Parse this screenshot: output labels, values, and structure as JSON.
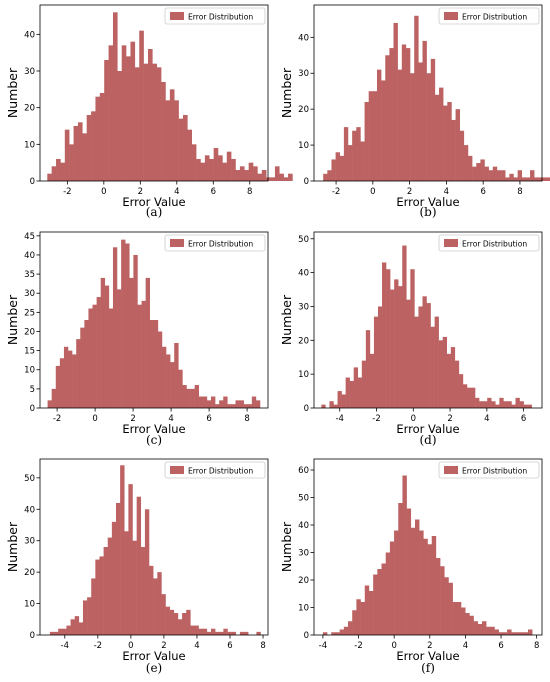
{
  "figure": {
    "bar_color": "#bc6262",
    "legend_swatch_color": "#bc6262"
  },
  "chart_data": [
    {
      "type": "bar",
      "caption": "(a)",
      "xlabel": "Error Value",
      "ylabel": "Number",
      "legend": "Error Distribution",
      "legend_position": "top-right",
      "xlim": [
        -3.5,
        9.0
      ],
      "ylim": [
        0,
        48
      ],
      "xticks": [
        "-2",
        "0",
        "2",
        "4",
        "6",
        "8"
      ],
      "xtick_values": [
        -2,
        0,
        2,
        4,
        6,
        8
      ],
      "yticks": [
        "0",
        "10",
        "20",
        "30",
        "40"
      ],
      "ytick_values": [
        0,
        10,
        20,
        30,
        40
      ],
      "bin_start": -3.1,
      "bin_width": 0.24,
      "values": [
        2,
        4,
        6,
        5,
        14,
        10,
        15,
        16,
        13,
        18,
        19,
        23,
        24,
        33,
        37,
        46,
        30,
        37,
        34,
        38,
        31,
        41,
        32,
        36,
        32,
        31,
        27,
        22,
        25,
        22,
        17,
        18,
        14,
        10,
        6,
        5,
        7,
        6,
        9,
        7,
        5,
        8,
        6,
        3,
        4,
        3,
        5,
        4,
        2,
        3,
        1,
        1,
        4,
        2,
        1,
        2
      ]
    },
    {
      "type": "bar",
      "caption": "(b)",
      "xlabel": "Error Value",
      "ylabel": "Number",
      "legend": "Error Distribution",
      "legend_position": "top-right",
      "xlim": [
        -3.2,
        9.2
      ],
      "ylim": [
        0,
        49
      ],
      "xticks": [
        "-2",
        "0",
        "2",
        "4",
        "6",
        "8"
      ],
      "xtick_values": [
        -2,
        0,
        2,
        4,
        6,
        8
      ],
      "yticks": [
        "0",
        "10",
        "20",
        "30",
        "40"
      ],
      "ytick_values": [
        0,
        10,
        20,
        30,
        40
      ],
      "bin_start": -2.7,
      "bin_width": 0.225,
      "values": [
        2,
        3,
        6,
        8,
        7,
        15,
        10,
        14,
        15,
        11,
        22,
        25,
        25,
        31,
        28,
        35,
        37,
        44,
        31,
        38,
        37,
        30,
        46,
        33,
        39,
        30,
        34,
        24,
        26,
        21,
        22,
        17,
        20,
        14,
        10,
        7,
        4,
        5,
        6,
        4,
        3,
        4,
        3,
        3,
        1,
        2,
        1,
        3,
        1,
        1,
        3,
        1,
        1,
        1,
        1
      ]
    },
    {
      "type": "bar",
      "caption": "(c)",
      "xlabel": "Error Value",
      "ylabel": "Number",
      "legend": "Error Distribution",
      "legend_position": "top-right",
      "xlim": [
        -2.9,
        9.1
      ],
      "ylim": [
        0,
        46
      ],
      "xticks": [
        "-2",
        "0",
        "2",
        "4",
        "6",
        "8"
      ],
      "xtick_values": [
        -2,
        0,
        2,
        4,
        6,
        8
      ],
      "yticks": [
        "0",
        "5",
        "10",
        "15",
        "20",
        "25",
        "30",
        "35",
        "40",
        "45"
      ],
      "ytick_values": [
        0,
        5,
        10,
        15,
        20,
        25,
        30,
        35,
        40,
        45
      ],
      "bin_start": -2.5,
      "bin_width": 0.215,
      "values": [
        2,
        5,
        11,
        13,
        16,
        15,
        14,
        18,
        21,
        23,
        26,
        27,
        29,
        34,
        32,
        26,
        42,
        31,
        44,
        43,
        34,
        40,
        27,
        28,
        34,
        23,
        23,
        20,
        16,
        14,
        12,
        17,
        10,
        6,
        5,
        5,
        6,
        3,
        3,
        2,
        3,
        1,
        2,
        3,
        1,
        1,
        2,
        2,
        1,
        1,
        3,
        2
      ]
    },
    {
      "type": "bar",
      "caption": "(d)",
      "xlabel": "Error Value",
      "ylabel": "Number",
      "legend": "Error Distribution",
      "legend_position": "top-right",
      "xlim": [
        -5.4,
        7.0
      ],
      "ylim": [
        0,
        52
      ],
      "xticks": [
        "-4",
        "-2",
        "0",
        "2",
        "4",
        "6"
      ],
      "xtick_values": [
        -4,
        -2,
        0,
        2,
        4,
        6
      ],
      "yticks": [
        "0",
        "10",
        "20",
        "30",
        "40",
        "50"
      ],
      "ytick_values": [
        0,
        10,
        20,
        30,
        40,
        50
      ],
      "bin_start": -5.0,
      "bin_width": 0.22,
      "values": [
        1,
        0,
        2,
        1,
        5,
        4,
        9,
        8,
        12,
        9,
        14,
        23,
        16,
        27,
        30,
        43,
        41,
        35,
        38,
        36,
        48,
        32,
        41,
        27,
        30,
        33,
        31,
        24,
        27,
        20,
        21,
        16,
        18,
        14,
        10,
        7,
        6,
        6,
        3,
        2,
        2,
        3,
        2,
        1,
        3,
        2,
        2,
        1,
        3,
        2,
        1,
        1
      ]
    },
    {
      "type": "bar",
      "caption": "(e)",
      "xlabel": "Error Value",
      "ylabel": "Number",
      "legend": "Error Distribution",
      "legend_position": "top-right",
      "xlim": [
        -5.5,
        8.3
      ],
      "ylim": [
        0,
        56
      ],
      "xticks": [
        "-4",
        "-2",
        "0",
        "2",
        "4",
        "6",
        "8"
      ],
      "xtick_values": [
        -4,
        -2,
        0,
        2,
        4,
        6,
        8
      ],
      "yticks": [
        "0",
        "10",
        "20",
        "30",
        "40",
        "50"
      ],
      "ytick_values": [
        0,
        10,
        20,
        30,
        40,
        50
      ],
      "bin_start": -4.9,
      "bin_width": 0.25,
      "values": [
        1,
        1,
        2,
        2,
        3,
        5,
        6,
        4,
        11,
        12,
        18,
        24,
        25,
        28,
        31,
        36,
        42,
        54,
        33,
        48,
        30,
        44,
        28,
        40,
        22,
        18,
        20,
        13,
        9,
        8,
        7,
        5,
        7,
        8,
        3,
        3,
        2,
        2,
        1,
        2,
        1,
        1,
        2,
        1,
        1,
        0,
        1,
        1,
        0,
        0,
        1
      ]
    },
    {
      "type": "bar",
      "caption": "(f)",
      "xlabel": "Error Value",
      "ylabel": "Number",
      "legend": "Error Distribution",
      "legend_position": "top-right",
      "xlim": [
        -4.5,
        8.3
      ],
      "ylim": [
        0,
        64
      ],
      "xticks": [
        "-4",
        "-2",
        "0",
        "2",
        "4",
        "6",
        "8"
      ],
      "xtick_values": [
        -4,
        -2,
        0,
        2,
        4,
        6,
        8
      ],
      "yticks": [
        "0",
        "10",
        "20",
        "30",
        "40",
        "50",
        "60"
      ],
      "ytick_values": [
        0,
        10,
        20,
        30,
        40,
        50,
        60
      ],
      "bin_start": -4.0,
      "bin_width": 0.235,
      "values": [
        1,
        0,
        1,
        1,
        2,
        3,
        5,
        9,
        13,
        12,
        18,
        16,
        22,
        24,
        26,
        30,
        34,
        38,
        48,
        58,
        46,
        39,
        42,
        38,
        35,
        33,
        36,
        28,
        25,
        21,
        19,
        12,
        12,
        10,
        8,
        7,
        5,
        4,
        5,
        3,
        3,
        2,
        1,
        1,
        2,
        1,
        1,
        1,
        1,
        2
      ]
    }
  ]
}
